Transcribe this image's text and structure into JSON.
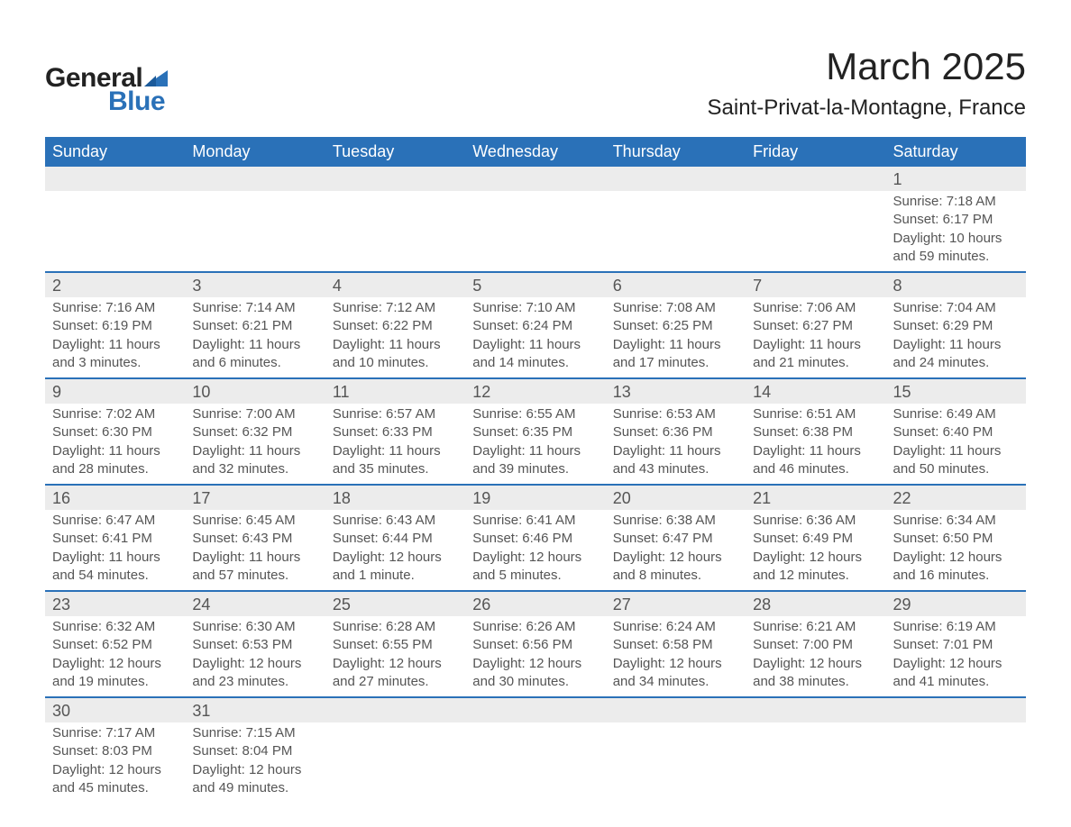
{
  "brand": {
    "word1": "General",
    "word2": "Blue",
    "text_color": "#222222",
    "accent_color": "#2a71b8"
  },
  "header": {
    "month_title": "March 2025",
    "location": "Saint-Privat-la-Montagne, France",
    "title_fontsize": 42,
    "location_fontsize": 24
  },
  "styling": {
    "header_bg": "#2a71b8",
    "header_text": "#ffffff",
    "daynum_bg": "#ececec",
    "row_divider": "#2a71b8",
    "body_text": "#555555",
    "page_bg": "#ffffff",
    "font_family": "Arial",
    "daynum_fontsize": 18,
    "detail_fontsize": 15
  },
  "weekdays": [
    "Sunday",
    "Monday",
    "Tuesday",
    "Wednesday",
    "Thursday",
    "Friday",
    "Saturday"
  ],
  "weeks": [
    [
      null,
      null,
      null,
      null,
      null,
      null,
      {
        "n": "1",
        "sr": "Sunrise: 7:18 AM",
        "ss": "Sunset: 6:17 PM",
        "d1": "Daylight: 10 hours",
        "d2": "and 59 minutes."
      }
    ],
    [
      {
        "n": "2",
        "sr": "Sunrise: 7:16 AM",
        "ss": "Sunset: 6:19 PM",
        "d1": "Daylight: 11 hours",
        "d2": "and 3 minutes."
      },
      {
        "n": "3",
        "sr": "Sunrise: 7:14 AM",
        "ss": "Sunset: 6:21 PM",
        "d1": "Daylight: 11 hours",
        "d2": "and 6 minutes."
      },
      {
        "n": "4",
        "sr": "Sunrise: 7:12 AM",
        "ss": "Sunset: 6:22 PM",
        "d1": "Daylight: 11 hours",
        "d2": "and 10 minutes."
      },
      {
        "n": "5",
        "sr": "Sunrise: 7:10 AM",
        "ss": "Sunset: 6:24 PM",
        "d1": "Daylight: 11 hours",
        "d2": "and 14 minutes."
      },
      {
        "n": "6",
        "sr": "Sunrise: 7:08 AM",
        "ss": "Sunset: 6:25 PM",
        "d1": "Daylight: 11 hours",
        "d2": "and 17 minutes."
      },
      {
        "n": "7",
        "sr": "Sunrise: 7:06 AM",
        "ss": "Sunset: 6:27 PM",
        "d1": "Daylight: 11 hours",
        "d2": "and 21 minutes."
      },
      {
        "n": "8",
        "sr": "Sunrise: 7:04 AM",
        "ss": "Sunset: 6:29 PM",
        "d1": "Daylight: 11 hours",
        "d2": "and 24 minutes."
      }
    ],
    [
      {
        "n": "9",
        "sr": "Sunrise: 7:02 AM",
        "ss": "Sunset: 6:30 PM",
        "d1": "Daylight: 11 hours",
        "d2": "and 28 minutes."
      },
      {
        "n": "10",
        "sr": "Sunrise: 7:00 AM",
        "ss": "Sunset: 6:32 PM",
        "d1": "Daylight: 11 hours",
        "d2": "and 32 minutes."
      },
      {
        "n": "11",
        "sr": "Sunrise: 6:57 AM",
        "ss": "Sunset: 6:33 PM",
        "d1": "Daylight: 11 hours",
        "d2": "and 35 minutes."
      },
      {
        "n": "12",
        "sr": "Sunrise: 6:55 AM",
        "ss": "Sunset: 6:35 PM",
        "d1": "Daylight: 11 hours",
        "d2": "and 39 minutes."
      },
      {
        "n": "13",
        "sr": "Sunrise: 6:53 AM",
        "ss": "Sunset: 6:36 PM",
        "d1": "Daylight: 11 hours",
        "d2": "and 43 minutes."
      },
      {
        "n": "14",
        "sr": "Sunrise: 6:51 AM",
        "ss": "Sunset: 6:38 PM",
        "d1": "Daylight: 11 hours",
        "d2": "and 46 minutes."
      },
      {
        "n": "15",
        "sr": "Sunrise: 6:49 AM",
        "ss": "Sunset: 6:40 PM",
        "d1": "Daylight: 11 hours",
        "d2": "and 50 minutes."
      }
    ],
    [
      {
        "n": "16",
        "sr": "Sunrise: 6:47 AM",
        "ss": "Sunset: 6:41 PM",
        "d1": "Daylight: 11 hours",
        "d2": "and 54 minutes."
      },
      {
        "n": "17",
        "sr": "Sunrise: 6:45 AM",
        "ss": "Sunset: 6:43 PM",
        "d1": "Daylight: 11 hours",
        "d2": "and 57 minutes."
      },
      {
        "n": "18",
        "sr": "Sunrise: 6:43 AM",
        "ss": "Sunset: 6:44 PM",
        "d1": "Daylight: 12 hours",
        "d2": "and 1 minute."
      },
      {
        "n": "19",
        "sr": "Sunrise: 6:41 AM",
        "ss": "Sunset: 6:46 PM",
        "d1": "Daylight: 12 hours",
        "d2": "and 5 minutes."
      },
      {
        "n": "20",
        "sr": "Sunrise: 6:38 AM",
        "ss": "Sunset: 6:47 PM",
        "d1": "Daylight: 12 hours",
        "d2": "and 8 minutes."
      },
      {
        "n": "21",
        "sr": "Sunrise: 6:36 AM",
        "ss": "Sunset: 6:49 PM",
        "d1": "Daylight: 12 hours",
        "d2": "and 12 minutes."
      },
      {
        "n": "22",
        "sr": "Sunrise: 6:34 AM",
        "ss": "Sunset: 6:50 PM",
        "d1": "Daylight: 12 hours",
        "d2": "and 16 minutes."
      }
    ],
    [
      {
        "n": "23",
        "sr": "Sunrise: 6:32 AM",
        "ss": "Sunset: 6:52 PM",
        "d1": "Daylight: 12 hours",
        "d2": "and 19 minutes."
      },
      {
        "n": "24",
        "sr": "Sunrise: 6:30 AM",
        "ss": "Sunset: 6:53 PM",
        "d1": "Daylight: 12 hours",
        "d2": "and 23 minutes."
      },
      {
        "n": "25",
        "sr": "Sunrise: 6:28 AM",
        "ss": "Sunset: 6:55 PM",
        "d1": "Daylight: 12 hours",
        "d2": "and 27 minutes."
      },
      {
        "n": "26",
        "sr": "Sunrise: 6:26 AM",
        "ss": "Sunset: 6:56 PM",
        "d1": "Daylight: 12 hours",
        "d2": "and 30 minutes."
      },
      {
        "n": "27",
        "sr": "Sunrise: 6:24 AM",
        "ss": "Sunset: 6:58 PM",
        "d1": "Daylight: 12 hours",
        "d2": "and 34 minutes."
      },
      {
        "n": "28",
        "sr": "Sunrise: 6:21 AM",
        "ss": "Sunset: 7:00 PM",
        "d1": "Daylight: 12 hours",
        "d2": "and 38 minutes."
      },
      {
        "n": "29",
        "sr": "Sunrise: 6:19 AM",
        "ss": "Sunset: 7:01 PM",
        "d1": "Daylight: 12 hours",
        "d2": "and 41 minutes."
      }
    ],
    [
      {
        "n": "30",
        "sr": "Sunrise: 7:17 AM",
        "ss": "Sunset: 8:03 PM",
        "d1": "Daylight: 12 hours",
        "d2": "and 45 minutes."
      },
      {
        "n": "31",
        "sr": "Sunrise: 7:15 AM",
        "ss": "Sunset: 8:04 PM",
        "d1": "Daylight: 12 hours",
        "d2": "and 49 minutes."
      },
      null,
      null,
      null,
      null,
      null
    ]
  ]
}
